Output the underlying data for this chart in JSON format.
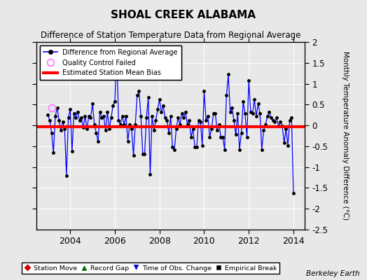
{
  "title": "SHOAL CREEK ALABAMA",
  "subtitle": "Difference of Station Temperature Data from Regional Average",
  "ylabel": "Monthly Temperature Anomaly Difference (°C)",
  "bias": -0.03,
  "xlim": [
    2002.5,
    2014.5
  ],
  "ylim": [
    -2.5,
    2.0
  ],
  "yticks": [
    -2.0,
    -1.5,
    -1.0,
    -0.5,
    0.0,
    0.5,
    1.0,
    1.5,
    2.0
  ],
  "ytick_labels": [
    "-2",
    "-1.5",
    "-1",
    "-0.5",
    "0",
    "0.5",
    "1",
    "1.5",
    "2"
  ],
  "yticks_right_extra": -2.5,
  "xticks": [
    2004,
    2006,
    2008,
    2010,
    2012,
    2014
  ],
  "bg_color": "#e8e8e8",
  "grid_color": "#ffffff",
  "line_color": "#0000ff",
  "bias_color": "#ff0000",
  "watermark": "Berkeley Earth",
  "qc_fail_x": [
    2003.17
  ],
  "qc_fail_y": [
    0.42
  ],
  "time_series": {
    "x": [
      2003.0,
      2003.083,
      2003.167,
      2003.25,
      2003.333,
      2003.417,
      2003.5,
      2003.583,
      2003.667,
      2003.75,
      2003.833,
      2003.917,
      2004.0,
      2004.083,
      2004.167,
      2004.25,
      2004.333,
      2004.417,
      2004.5,
      2004.583,
      2004.667,
      2004.75,
      2004.833,
      2004.917,
      2005.0,
      2005.083,
      2005.167,
      2005.25,
      2005.333,
      2005.417,
      2005.5,
      2005.583,
      2005.667,
      2005.75,
      2005.833,
      2005.917,
      2006.0,
      2006.083,
      2006.167,
      2006.25,
      2006.333,
      2006.417,
      2006.5,
      2006.583,
      2006.667,
      2006.75,
      2006.833,
      2006.917,
      2007.0,
      2007.083,
      2007.167,
      2007.25,
      2007.333,
      2007.417,
      2007.5,
      2007.583,
      2007.667,
      2007.75,
      2007.833,
      2007.917,
      2008.0,
      2008.083,
      2008.167,
      2008.25,
      2008.333,
      2008.417,
      2008.5,
      2008.583,
      2008.667,
      2008.75,
      2008.833,
      2008.917,
      2009.0,
      2009.083,
      2009.167,
      2009.25,
      2009.333,
      2009.417,
      2009.5,
      2009.583,
      2009.667,
      2009.75,
      2009.833,
      2009.917,
      2010.0,
      2010.083,
      2010.167,
      2010.25,
      2010.333,
      2010.417,
      2010.5,
      2010.583,
      2010.667,
      2010.75,
      2010.833,
      2010.917,
      2011.0,
      2011.083,
      2011.167,
      2011.25,
      2011.333,
      2011.417,
      2011.5,
      2011.583,
      2011.667,
      2011.75,
      2011.833,
      2011.917,
      2012.0,
      2012.083,
      2012.167,
      2012.25,
      2012.333,
      2012.417,
      2012.5,
      2012.583,
      2012.667,
      2012.75,
      2012.833,
      2012.917,
      2013.0,
      2013.083,
      2013.167,
      2013.25,
      2013.333,
      2013.417,
      2013.5,
      2013.583,
      2013.667,
      2013.75,
      2013.833,
      2013.917,
      2014.0
    ],
    "y": [
      0.25,
      0.12,
      -0.18,
      -0.65,
      0.22,
      0.42,
      0.12,
      -0.12,
      0.08,
      -0.08,
      -1.2,
      0.18,
      0.38,
      -0.62,
      0.28,
      0.18,
      0.32,
      0.12,
      0.18,
      -0.05,
      0.22,
      -0.08,
      0.22,
      0.18,
      0.52,
      0.02,
      -0.18,
      -0.38,
      0.32,
      0.18,
      0.22,
      -0.12,
      0.32,
      -0.08,
      0.18,
      0.48,
      0.58,
      1.78,
      0.12,
      0.02,
      0.22,
      0.02,
      0.22,
      -0.38,
      0.02,
      -0.08,
      -0.72,
      0.02,
      0.72,
      0.82,
      0.22,
      -0.68,
      -0.68,
      0.18,
      0.68,
      -1.18,
      0.22,
      -0.12,
      0.12,
      0.38,
      0.62,
      0.32,
      0.48,
      0.18,
      0.12,
      -0.18,
      0.22,
      -0.52,
      -0.58,
      -0.08,
      0.18,
      0.02,
      0.28,
      0.18,
      0.32,
      0.02,
      0.12,
      -0.28,
      -0.08,
      -0.52,
      -0.52,
      0.12,
      0.08,
      -0.48,
      0.82,
      0.12,
      0.22,
      -0.28,
      -0.08,
      0.28,
      0.28,
      -0.12,
      0.02,
      -0.28,
      -0.28,
      -0.58,
      0.72,
      1.22,
      0.32,
      0.42,
      0.12,
      -0.22,
      0.28,
      -0.58,
      -0.18,
      0.58,
      0.28,
      -0.28,
      1.08,
      0.32,
      0.28,
      0.62,
      0.22,
      0.52,
      0.28,
      -0.58,
      -0.12,
      0.02,
      0.22,
      0.32,
      0.18,
      0.12,
      0.08,
      0.18,
      -0.02,
      0.08,
      -0.02,
      -0.42,
      -0.08,
      -0.48,
      0.12,
      0.18,
      -1.62
    ]
  }
}
